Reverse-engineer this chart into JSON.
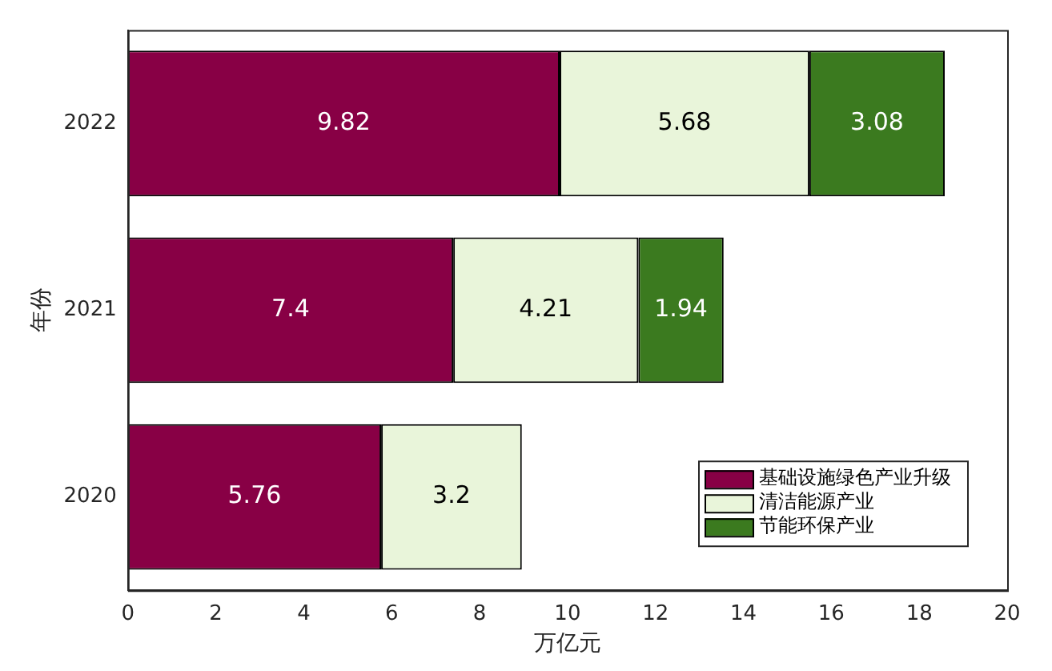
{
  "chart_data": {
    "type": "bar",
    "orientation": "horizontal",
    "stacked": true,
    "categories": [
      "2022",
      "2021",
      "2020"
    ],
    "series": [
      {
        "name": "基础设施绿色产业升级",
        "color": "#880045",
        "values": [
          9.82,
          7.4,
          5.76
        ]
      },
      {
        "name": "清洁能源产业",
        "color": "#e9f5da",
        "values": [
          5.68,
          4.21,
          3.2
        ]
      },
      {
        "name": "节能环保产业",
        "color": "#3b7a1f",
        "values": [
          3.08,
          1.94,
          null
        ]
      }
    ],
    "xlim": [
      0,
      20
    ],
    "xticks": [
      0,
      2,
      4,
      6,
      8,
      10,
      12,
      14,
      16,
      18,
      20
    ],
    "xlabel": "万亿元",
    "ylabel": "年份",
    "grid": false,
    "legend": "bottom right",
    "data_labels": true
  }
}
